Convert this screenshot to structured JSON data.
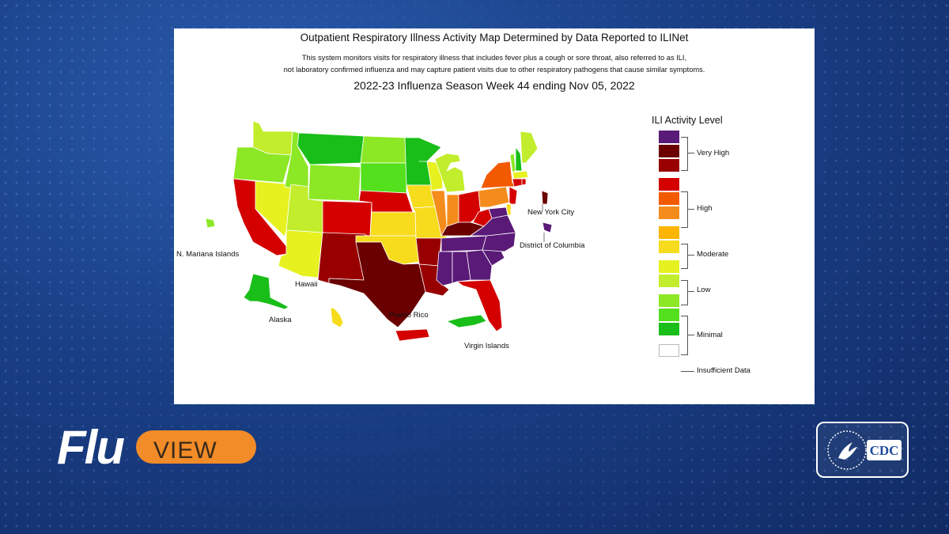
{
  "map": {
    "title": "Outpatient Respiratory Illness Activity Map Determined by Data Reported to ILINet",
    "subtitle_line1": "This system monitors visits for respiratory illness that includes fever plus a cough or sore throat, also referred to as ILI,",
    "subtitle_line2": "not laboratory confirmed influenza and may capture patient visits due to other respiratory pathogens that cause similar symptoms.",
    "season": "2022-23 Influenza Season Week 44 ending Nov 05, 2022",
    "labels": {
      "mariana": "N. Mariana Islands",
      "hawaii": "Hawaii",
      "alaska": "Alaska",
      "puerto_rico": "Puerto Rico",
      "virgin": "Virgin Islands",
      "nyc": "New York City",
      "dc": "District of Columbia"
    }
  },
  "legend": {
    "title": "ILI Activity Level",
    "levels": [
      {
        "level": 13,
        "color": "#5a1a78"
      },
      {
        "level": 12,
        "color": "#6a0000"
      },
      {
        "level": 11,
        "color": "#980000"
      },
      {
        "level": 10,
        "color": "#d40000"
      },
      {
        "level": 9,
        "color": "#f25a00"
      },
      {
        "level": 8,
        "color": "#f48c1c"
      },
      {
        "level": 7,
        "color": "#fbb500"
      },
      {
        "level": 6,
        "color": "#f6dc1c"
      },
      {
        "level": 5,
        "color": "#e7f11f"
      },
      {
        "level": 4,
        "color": "#c2ed2c"
      },
      {
        "level": 3,
        "color": "#8ce825"
      },
      {
        "level": 2,
        "color": "#55e01e"
      },
      {
        "level": 1,
        "color": "#19be19"
      },
      {
        "level": 0,
        "color": "#ffffff"
      }
    ],
    "groups": {
      "very_high": "Very High",
      "high": "High",
      "moderate": "Moderate",
      "low": "Low",
      "minimal": "Minimal",
      "insufficient": "Insufficient Data"
    }
  },
  "branding": {
    "flu": "Flu",
    "view": "VIEW",
    "cdc": "CDC"
  },
  "chart_data": {
    "type": "choropleth",
    "title": "2022-23 Influenza Season Week 44 ending Nov 05, 2022",
    "scale": "ILI Activity Level (1 Minimal - 13 Very High)",
    "jurisdictions": [
      {
        "name": "Washington",
        "level": 4
      },
      {
        "name": "Oregon",
        "level": 3
      },
      {
        "name": "California",
        "level": 10
      },
      {
        "name": "Nevada",
        "level": 5
      },
      {
        "name": "Idaho",
        "level": 3
      },
      {
        "name": "Montana",
        "level": 1
      },
      {
        "name": "Wyoming",
        "level": 3
      },
      {
        "name": "Utah",
        "level": 4
      },
      {
        "name": "Arizona",
        "level": 5
      },
      {
        "name": "Colorado",
        "level": 10
      },
      {
        "name": "New Mexico",
        "level": 11
      },
      {
        "name": "North Dakota",
        "level": 3
      },
      {
        "name": "South Dakota",
        "level": 2
      },
      {
        "name": "Nebraska",
        "level": 10
      },
      {
        "name": "Kansas",
        "level": 6
      },
      {
        "name": "Oklahoma",
        "level": 6
      },
      {
        "name": "Texas",
        "level": 12
      },
      {
        "name": "Minnesota",
        "level": 1
      },
      {
        "name": "Iowa",
        "level": 6
      },
      {
        "name": "Missouri",
        "level": 6
      },
      {
        "name": "Arkansas",
        "level": 11
      },
      {
        "name": "Louisiana",
        "level": 11
      },
      {
        "name": "Wisconsin",
        "level": 5
      },
      {
        "name": "Illinois",
        "level": 8
      },
      {
        "name": "Michigan",
        "level": 4
      },
      {
        "name": "Indiana",
        "level": 8
      },
      {
        "name": "Ohio",
        "level": 10
      },
      {
        "name": "Kentucky",
        "level": 12
      },
      {
        "name": "Tennessee",
        "level": 13
      },
      {
        "name": "Mississippi",
        "level": 13
      },
      {
        "name": "Alabama",
        "level": 13
      },
      {
        "name": "Georgia",
        "level": 13
      },
      {
        "name": "Florida",
        "level": 10
      },
      {
        "name": "South Carolina",
        "level": 13
      },
      {
        "name": "North Carolina",
        "level": 13
      },
      {
        "name": "Virginia",
        "level": 13
      },
      {
        "name": "West Virginia",
        "level": 10
      },
      {
        "name": "Pennsylvania",
        "level": 8
      },
      {
        "name": "New York",
        "level": 9
      },
      {
        "name": "Vermont",
        "level": 3
      },
      {
        "name": "New Hampshire",
        "level": 1
      },
      {
        "name": "Maine",
        "level": 4
      },
      {
        "name": "Massachusetts",
        "level": 5
      },
      {
        "name": "Connecticut",
        "level": 10
      },
      {
        "name": "Rhode Island",
        "level": 10
      },
      {
        "name": "New Jersey",
        "level": 10
      },
      {
        "name": "Delaware",
        "level": 6
      },
      {
        "name": "Maryland",
        "level": 13
      },
      {
        "name": "Alaska",
        "level": 1
      },
      {
        "name": "Hawaii",
        "level": 6
      },
      {
        "name": "Puerto Rico",
        "level": 10
      },
      {
        "name": "Virgin Islands",
        "level": 1
      },
      {
        "name": "N. Mariana Islands",
        "level": 3
      },
      {
        "name": "New York City",
        "level": 12
      },
      {
        "name": "District of Columbia",
        "level": 13
      }
    ]
  }
}
